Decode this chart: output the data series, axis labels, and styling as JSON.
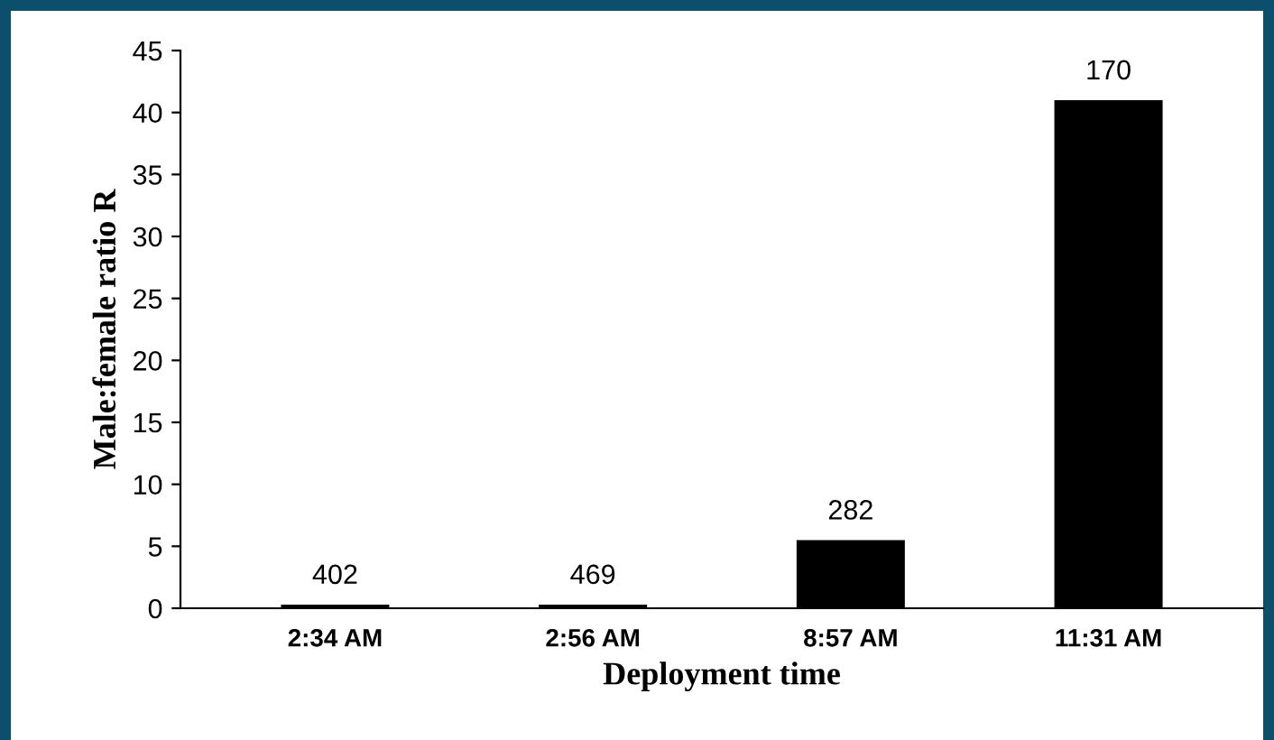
{
  "chart_data": {
    "type": "bar",
    "xlabel": "Deployment time",
    "ylabel": "Male:female ratio R",
    "categories": [
      "2:34 AM",
      "2:56 AM",
      "8:57 AM",
      "11:31 AM"
    ],
    "values": [
      0.3,
      0.3,
      5.5,
      41
    ],
    "annotations": [
      {
        "text": "402",
        "x": "2:34 AM",
        "y": 0.3
      },
      {
        "text": "469",
        "x": "2:56 AM",
        "y": 0.3
      },
      {
        "text": "282",
        "x": "8:57 AM",
        "y": 5.5
      },
      {
        "text": "170",
        "x": "11:31 AM",
        "y": 41
      }
    ],
    "color": "#000000",
    "ylim": [
      0,
      45
    ],
    "yticks": [
      0,
      5,
      10,
      15,
      20,
      25,
      30,
      35,
      40,
      45
    ],
    "grid": false,
    "legend": false
  }
}
